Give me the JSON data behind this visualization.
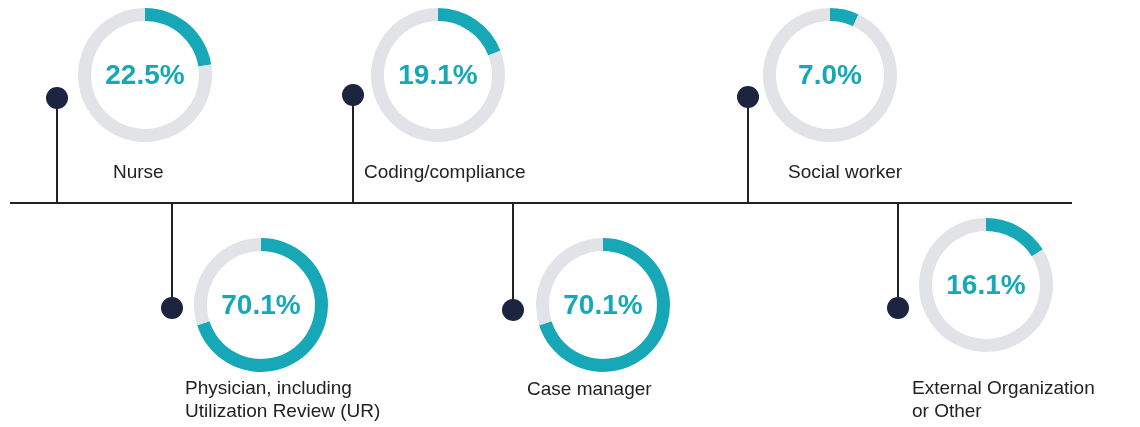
{
  "chart_data": [
    {
      "type": "donut",
      "title": "Nurse",
      "categories": [
        null,
        null
      ],
      "values": [
        22.5,
        77.5
      ],
      "colors": [
        "#17a8b8",
        "#e1e3e6"
      ],
      "annotations": [
        "22.5%"
      ]
    },
    {
      "type": "donut",
      "title": "Physician, including\nUtilization Review (UR)",
      "categories": [
        null,
        null
      ],
      "values": [
        70.1,
        29.9
      ],
      "colors": [
        "#17a8b8",
        "#e1e3e6"
      ],
      "annotations": [
        "70.1%"
      ]
    },
    {
      "type": "donut",
      "title": "Coding/compliance",
      "categories": [
        null,
        null
      ],
      "values": [
        19.1,
        80.9
      ],
      "colors": [
        "#17a8b8",
        "#e1e3e6"
      ],
      "annotations": [
        "19.1%"
      ]
    },
    {
      "type": "donut",
      "title": "Case manager",
      "categories": [
        null,
        null
      ],
      "values": [
        70.1,
        29.9
      ],
      "colors": [
        "#17a8b8",
        "#e1e3e6"
      ],
      "annotations": [
        "70.1%"
      ]
    },
    {
      "type": "donut",
      "title": "Social worker",
      "categories": [
        null,
        null
      ],
      "values": [
        7.0,
        93.0
      ],
      "colors": [
        "#17a8b8",
        "#e1e3e6"
      ],
      "annotations": [
        "7.0%"
      ]
    },
    {
      "type": "donut",
      "title": "External Organization\nor Other",
      "categories": [
        null,
        null
      ],
      "values": [
        16.1,
        83.9
      ],
      "colors": [
        "#17a8b8",
        "#e1e3e6"
      ],
      "annotations": [
        "16.1%"
      ]
    }
  ]
}
